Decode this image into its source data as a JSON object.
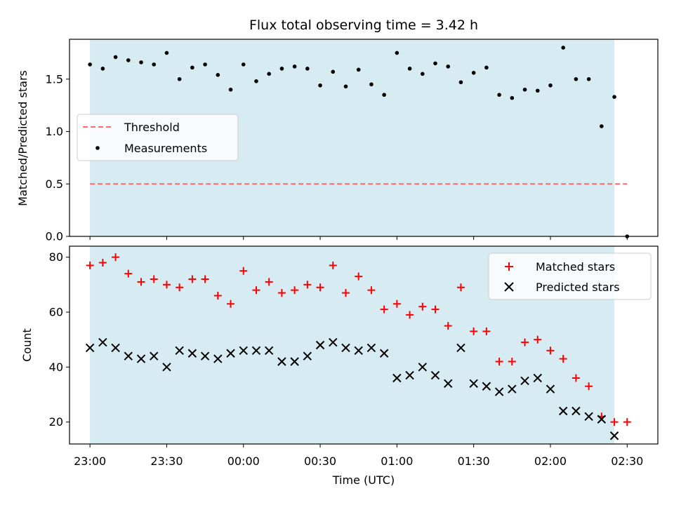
{
  "chart_data": [
    {
      "type": "scatter",
      "title": "Flux total observing time = 3.42 h",
      "ylabel": "Matched/Predicted stars",
      "xlabel": "",
      "ylim": [
        0,
        1.88
      ],
      "xlim": [
        "22:52",
        "02:42"
      ],
      "yticks": [
        "0.0",
        "0.5",
        "1.0",
        "1.5"
      ],
      "ytick_values": [
        0,
        0.5,
        1.0,
        1.5
      ],
      "shaded_span": [
        "23:00",
        "02:25"
      ],
      "shade_color": "#add8e6",
      "legend_position": "center-left",
      "threshold": {
        "name": "Threshold",
        "value": 0.5,
        "x": [
          "23:00",
          "02:30"
        ],
        "color": "#ff6b6b"
      },
      "series": [
        {
          "name": "Measurements",
          "color": "#000000",
          "x": [
            "23:00",
            "23:05",
            "23:10",
            "23:15",
            "23:20",
            "23:25",
            "23:30",
            "23:35",
            "23:40",
            "23:45",
            "23:50",
            "23:55",
            "00:00",
            "00:05",
            "00:10",
            "00:15",
            "00:20",
            "00:25",
            "00:30",
            "00:35",
            "00:40",
            "00:45",
            "00:50",
            "00:55",
            "01:00",
            "01:05",
            "01:10",
            "01:15",
            "01:20",
            "01:25",
            "01:30",
            "01:35",
            "01:40",
            "01:45",
            "01:50",
            "01:55",
            "02:00",
            "02:05",
            "02:10",
            "02:15",
            "02:20",
            "02:25",
            "02:30"
          ],
          "y": [
            1.64,
            1.6,
            1.71,
            1.68,
            1.66,
            1.64,
            1.75,
            1.5,
            1.61,
            1.64,
            1.54,
            1.4,
            1.64,
            1.48,
            1.55,
            1.6,
            1.62,
            1.6,
            1.44,
            1.57,
            1.43,
            1.59,
            1.45,
            1.35,
            1.75,
            1.6,
            1.55,
            1.65,
            1.62,
            1.47,
            1.56,
            1.61,
            1.35,
            1.32,
            1.4,
            1.39,
            1.44,
            1.8,
            1.5,
            1.5,
            1.05,
            1.33,
            0.0
          ]
        }
      ]
    },
    {
      "type": "scatter",
      "title": "",
      "xlabel": "Time (UTC)",
      "ylabel": "Count",
      "ylim": [
        12,
        84
      ],
      "xlim": [
        "22:52",
        "02:42"
      ],
      "yticks": [
        "20",
        "40",
        "60",
        "80"
      ],
      "ytick_values": [
        20,
        40,
        60,
        80
      ],
      "xticks": [
        "23:00",
        "23:30",
        "00:00",
        "00:30",
        "01:00",
        "01:30",
        "02:00",
        "02:30"
      ],
      "shaded_span": [
        "23:00",
        "02:25"
      ],
      "shade_color": "#add8e6",
      "legend_position": "top-right",
      "series": [
        {
          "name": "Matched stars",
          "color": "#ff0000",
          "marker": "+",
          "x": [
            "23:00",
            "23:05",
            "23:10",
            "23:15",
            "23:20",
            "23:25",
            "23:30",
            "23:35",
            "23:40",
            "23:45",
            "23:50",
            "23:55",
            "00:00",
            "00:05",
            "00:10",
            "00:15",
            "00:20",
            "00:25",
            "00:30",
            "00:35",
            "00:40",
            "00:45",
            "00:50",
            "00:55",
            "01:00",
            "01:05",
            "01:10",
            "01:15",
            "01:20",
            "01:25",
            "01:30",
            "01:35",
            "01:40",
            "01:45",
            "01:50",
            "01:55",
            "02:00",
            "02:05",
            "02:10",
            "02:15",
            "02:20",
            "02:25",
            "02:30"
          ],
          "y": [
            77,
            78,
            80,
            74,
            71,
            72,
            70,
            69,
            72,
            72,
            66,
            63,
            75,
            68,
            71,
            67,
            68,
            70,
            69,
            77,
            67,
            73,
            68,
            61,
            63,
            59,
            62,
            61,
            55,
            69,
            53,
            53,
            42,
            42,
            49,
            50,
            46,
            43,
            36,
            33,
            22,
            20,
            20
          ]
        },
        {
          "name": "Predicted stars",
          "color": "#000000",
          "marker": "x",
          "x": [
            "23:00",
            "23:05",
            "23:10",
            "23:15",
            "23:20",
            "23:25",
            "23:30",
            "23:35",
            "23:40",
            "23:45",
            "23:50",
            "23:55",
            "00:00",
            "00:05",
            "00:10",
            "00:15",
            "00:20",
            "00:25",
            "00:30",
            "00:35",
            "00:40",
            "00:45",
            "00:50",
            "00:55",
            "01:00",
            "01:05",
            "01:10",
            "01:15",
            "01:20",
            "01:25",
            "01:30",
            "01:35",
            "01:40",
            "01:45",
            "01:50",
            "01:55",
            "02:00",
            "02:05",
            "02:10",
            "02:15",
            "02:20",
            "02:25"
          ],
          "y": [
            47,
            49,
            47,
            44,
            43,
            44,
            40,
            46,
            45,
            44,
            43,
            45,
            46,
            46,
            46,
            42,
            42,
            44,
            48,
            49,
            47,
            46,
            47,
            45,
            36,
            37,
            40,
            37,
            34,
            47,
            34,
            33,
            31,
            32,
            35,
            36,
            32,
            24,
            24,
            22,
            21,
            15
          ]
        }
      ]
    }
  ]
}
